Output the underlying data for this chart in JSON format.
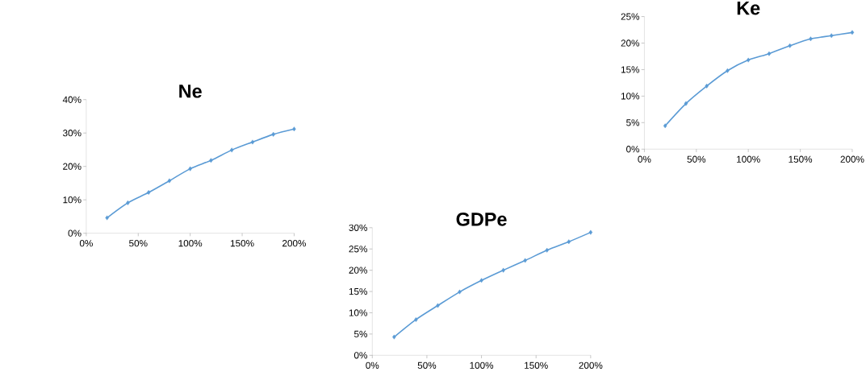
{
  "chart_data": [
    {
      "type": "line",
      "title": "Ne",
      "x": [
        20,
        40,
        60,
        80,
        100,
        120,
        140,
        160,
        180,
        200
      ],
      "values": [
        4.6,
        9.1,
        12.2,
        15.7,
        19.3,
        21.8,
        24.9,
        27.3,
        29.6,
        31.2
      ],
      "color": "#5b9bd5",
      "marker": "diamond",
      "line_style": "solid",
      "xlim": [
        0,
        200
      ],
      "ylim": [
        0,
        40
      ],
      "xticks": [
        {
          "value": 0,
          "label": "0%"
        },
        {
          "value": 50,
          "label": "50%"
        },
        {
          "value": 100,
          "label": "100%"
        },
        {
          "value": 150,
          "label": "150%"
        },
        {
          "value": 200,
          "label": "200%"
        }
      ],
      "yticks": [
        {
          "value": 0,
          "label": "0%"
        },
        {
          "value": 10,
          "label": "10%"
        },
        {
          "value": 20,
          "label": "20%"
        },
        {
          "value": 30,
          "label": "30%"
        },
        {
          "value": 40,
          "label": "40%"
        }
      ]
    },
    {
      "type": "line",
      "title": "Ke",
      "x": [
        20,
        40,
        60,
        80,
        100,
        120,
        140,
        160,
        180,
        200
      ],
      "values": [
        4.4,
        8.6,
        11.9,
        14.8,
        16.8,
        18.0,
        19.5,
        20.8,
        21.4,
        22.0
      ],
      "color": "#5b9bd5",
      "marker": "diamond",
      "line_style": "solid",
      "xlim": [
        0,
        200
      ],
      "ylim": [
        0,
        25
      ],
      "xticks": [
        {
          "value": 0,
          "label": "0%"
        },
        {
          "value": 50,
          "label": "50%"
        },
        {
          "value": 100,
          "label": "100%"
        },
        {
          "value": 150,
          "label": "150%"
        },
        {
          "value": 200,
          "label": "200%"
        }
      ],
      "yticks": [
        {
          "value": 0,
          "label": "0%"
        },
        {
          "value": 5,
          "label": "5%"
        },
        {
          "value": 10,
          "label": "10%"
        },
        {
          "value": 15,
          "label": "15%"
        },
        {
          "value": 20,
          "label": "20%"
        },
        {
          "value": 25,
          "label": "25%"
        }
      ]
    },
    {
      "type": "line",
      "title": "GDPe",
      "x": [
        20,
        40,
        60,
        80,
        100,
        120,
        140,
        160,
        180,
        200
      ],
      "values": [
        4.3,
        8.4,
        11.7,
        14.9,
        17.6,
        20.0,
        22.3,
        24.7,
        26.7,
        28.9
      ],
      "color": "#5b9bd5",
      "marker": "diamond",
      "line_style": "solid",
      "xlim": [
        0,
        200
      ],
      "ylim": [
        0,
        30
      ],
      "xticks": [
        {
          "value": 0,
          "label": "0%"
        },
        {
          "value": 50,
          "label": "50%"
        },
        {
          "value": 100,
          "label": "100%"
        },
        {
          "value": 150,
          "label": "150%"
        },
        {
          "value": 200,
          "label": "200%"
        }
      ],
      "yticks": [
        {
          "value": 0,
          "label": "0%"
        },
        {
          "value": 5,
          "label": "5%"
        },
        {
          "value": 10,
          "label": "10%"
        },
        {
          "value": 15,
          "label": "15%"
        },
        {
          "value": 20,
          "label": "20%"
        },
        {
          "value": 25,
          "label": "25%"
        },
        {
          "value": 30,
          "label": "30%"
        }
      ]
    }
  ]
}
